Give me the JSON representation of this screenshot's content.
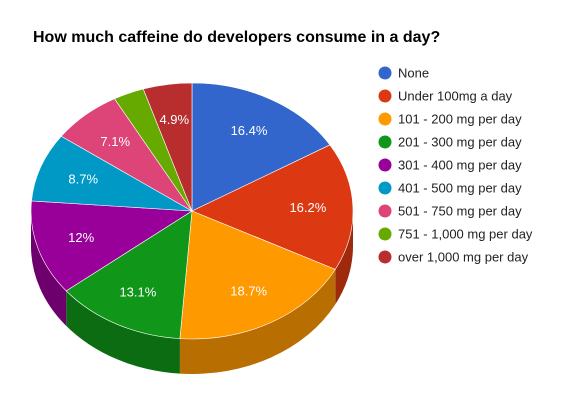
{
  "chart_data": {
    "type": "pie",
    "title": "How much caffeine do developers consume in a day?",
    "legend_position": "right",
    "style": "3d",
    "slices": [
      {
        "label": "None",
        "value": 16.4,
        "value_label": "16.4%",
        "color": "#3366cc"
      },
      {
        "label": "Under 100mg a day",
        "value": 16.2,
        "value_label": "16.2%",
        "color": "#dc3912"
      },
      {
        "label": "101 - 200 mg per day",
        "value": 18.7,
        "value_label": "18.7%",
        "color": "#ff9900"
      },
      {
        "label": "201 - 300 mg per day",
        "value": 13.1,
        "value_label": "13.1%",
        "color": "#109618"
      },
      {
        "label": "301 - 400 mg per day",
        "value": 12,
        "value_label": "12%",
        "color": "#990099"
      },
      {
        "label": "401 - 500 mg per day",
        "value": 8.7,
        "value_label": "8.7%",
        "color": "#0099c6"
      },
      {
        "label": "501 - 750 mg per day",
        "value": 7.1,
        "value_label": "7.1%",
        "color": "#dd4477"
      },
      {
        "label": "751 - 1,000 mg per day",
        "value": 3.1,
        "value_label": "",
        "color": "#66aa00"
      },
      {
        "label": "over 1,000 mg per day",
        "value": 4.9,
        "value_label": "4.9%",
        "color": "#b82e2e"
      }
    ]
  }
}
